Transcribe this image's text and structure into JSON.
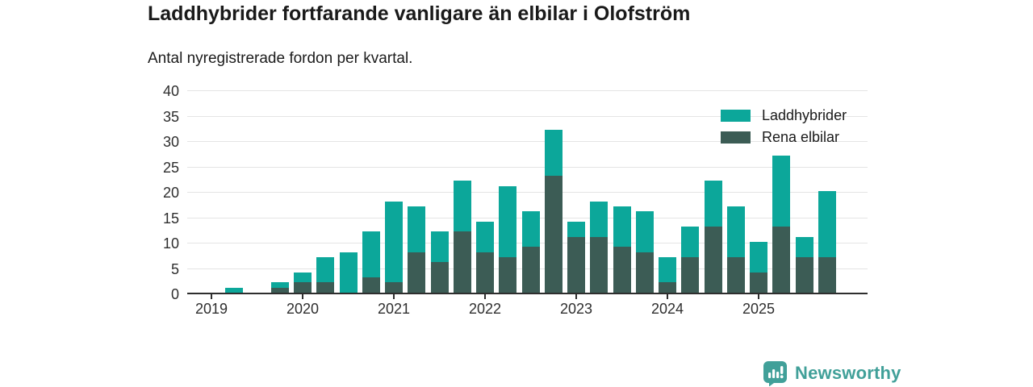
{
  "header": {
    "title": "Laddhybrider fortfarande vanligare än elbilar i Olofström",
    "subtitle": "Antal nyregistrerade fordon per kvartal."
  },
  "legend": [
    {
      "label": "Laddhybrider",
      "color": "#0ca79a"
    },
    {
      "label": "Rena elbilar",
      "color": "#3c5c55"
    }
  ],
  "footer": {
    "brand": "Newsworthy",
    "brand_color": "#41a099"
  },
  "colors": {
    "laddhybrider": "#0ca79a",
    "rena_elbilar": "#3c5c55",
    "axis": "#2e2e2e",
    "gridline": "#e4e4e4",
    "text": "#1a1a1a"
  },
  "chart_data": {
    "type": "bar",
    "stacked": true,
    "title": "Laddhybrider fortfarande vanligare än elbilar i Olofström",
    "subtitle": "Antal nyregistrerade fordon per kvartal.",
    "xlabel": "",
    "ylabel": "",
    "ylim": [
      0,
      40
    ],
    "yticks": [
      0,
      5,
      10,
      15,
      20,
      25,
      30,
      35,
      40
    ],
    "grid": "horizontal",
    "legend_position": "top-right",
    "x_year_ticks": [
      "2019",
      "2020",
      "2021",
      "2022",
      "2023",
      "2024",
      "2025"
    ],
    "categories": [
      "2019 Q1",
      "2019 Q2",
      "2019 Q3",
      "2019 Q4",
      "2020 Q1",
      "2020 Q2",
      "2020 Q3",
      "2020 Q4",
      "2021 Q1",
      "2021 Q2",
      "2021 Q3",
      "2021 Q4",
      "2022 Q1",
      "2022 Q2",
      "2022 Q3",
      "2022 Q4",
      "2023 Q1",
      "2023 Q2",
      "2023 Q3",
      "2023 Q4",
      "2024 Q1",
      "2024 Q2",
      "2024 Q3",
      "2024 Q4",
      "2025 Q1",
      "2025 Q2",
      "2025 Q3",
      "2025 Q4"
    ],
    "series": [
      {
        "name": "Rena elbilar",
        "color": "#3c5c55",
        "stack_order": "bottom",
        "values": [
          0,
          0,
          0,
          1,
          2,
          2,
          0,
          3,
          2,
          8,
          6,
          12,
          8,
          7,
          9,
          23,
          11,
          11,
          9,
          8,
          2,
          7,
          13,
          7,
          4,
          13,
          7,
          7
        ]
      },
      {
        "name": "Laddhybrider",
        "color": "#0ca79a",
        "stack_order": "top",
        "values": [
          0,
          1,
          0,
          1,
          2,
          5,
          8,
          9,
          16,
          9,
          6,
          10,
          6,
          14,
          7,
          9,
          3,
          7,
          8,
          8,
          5,
          6,
          9,
          10,
          6,
          14,
          4,
          13
        ]
      }
    ],
    "totals": [
      0,
      1,
      0,
      2,
      4,
      7,
      8,
      12,
      18,
      17,
      12,
      22,
      14,
      21,
      16,
      32,
      14,
      18,
      17,
      16,
      7,
      13,
      22,
      17,
      10,
      27,
      11,
      20
    ]
  }
}
